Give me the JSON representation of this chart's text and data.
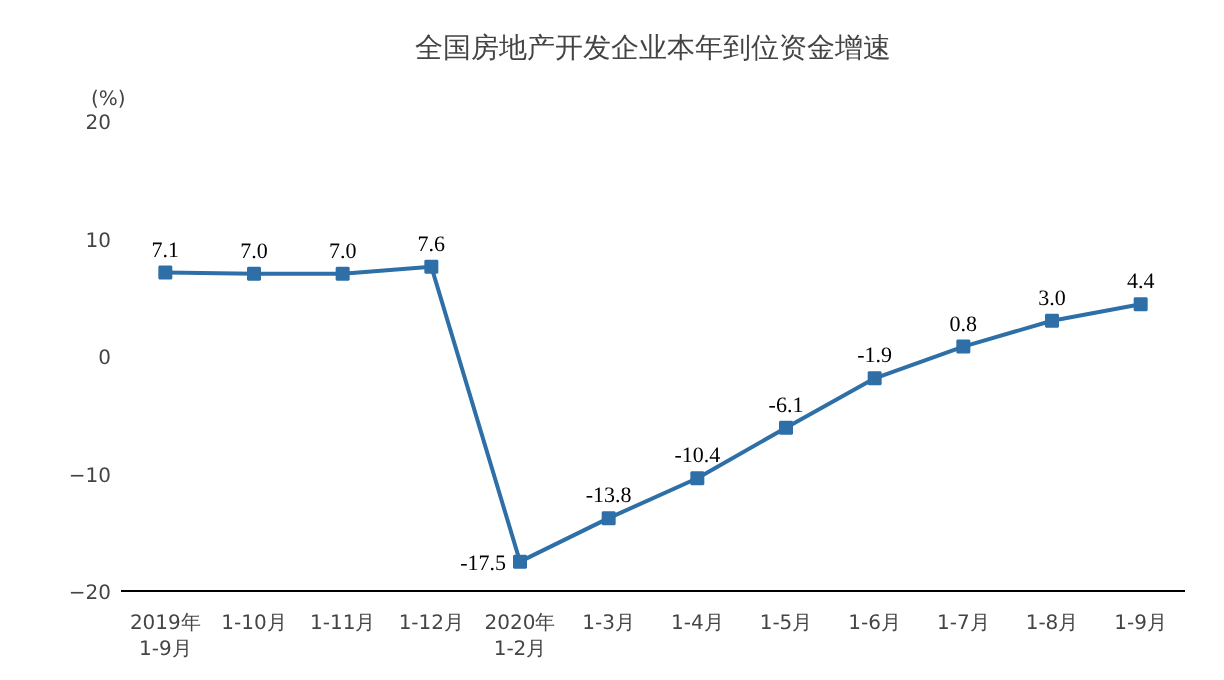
{
  "chart_data": {
    "type": "line",
    "title": "全国房地产开发企业本年到位资金增速",
    "ylabel": "(%)",
    "categories": [
      "2019年\n1-9月",
      "1-10月",
      "1-11月",
      "1-12月",
      "2020年\n1-2月",
      "1-3月",
      "1-4月",
      "1-5月",
      "1-6月",
      "1-7月",
      "1-8月",
      "1-9月"
    ],
    "series": [
      {
        "color": "#2e6fa7",
        "values": [
          7.1,
          7.0,
          7.0,
          7.6,
          -17.5,
          -13.8,
          -10.4,
          -6.1,
          -1.9,
          0.8,
          3.0,
          4.4
        ],
        "value_labels": [
          "7.1",
          "7.0",
          "7.0",
          "7.6",
          "-17.5",
          "-13.8",
          "-10.4",
          "-6.1",
          "-1.9",
          "0.8",
          "3.0",
          "4.4"
        ]
      }
    ],
    "ylim": [
      -20,
      20
    ],
    "yticks": [
      -20,
      -10,
      0,
      10,
      20
    ],
    "grid": false,
    "marker": "square",
    "line_style": "solid"
  }
}
